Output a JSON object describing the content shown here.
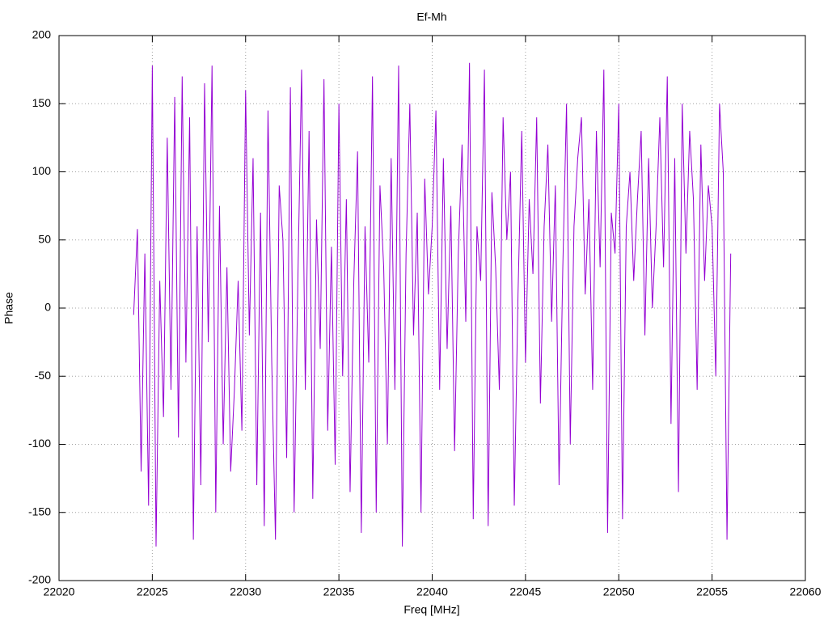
{
  "chart_data": {
    "type": "line",
    "title": "Ef-Mh",
    "x_label": "Freq [MHz]",
    "y_label": "Phase",
    "x": [
      22024,
      22024.2,
      22024.4,
      22024.6,
      22024.8,
      22025,
      22025.2,
      22025.4,
      22025.6,
      22025.8,
      22026,
      22026.2,
      22026.4,
      22026.6,
      22026.8,
      22027,
      22027.2,
      22027.4,
      22027.6,
      22027.8,
      22028,
      22028.2,
      22028.4,
      22028.6,
      22028.8,
      22029,
      22029.2,
      22029.4,
      22029.6,
      22029.8,
      22030,
      22030.2,
      22030.4,
      22030.6,
      22030.8,
      22031,
      22031.2,
      22031.4,
      22031.6,
      22031.8,
      22032,
      22032.2,
      22032.4,
      22032.6,
      22032.8,
      22033,
      22033.2,
      22033.4,
      22033.6,
      22033.8,
      22034,
      22034.2,
      22034.4,
      22034.6,
      22034.8,
      22035,
      22035.2,
      22035.4,
      22035.6,
      22035.8,
      22036,
      22036.2,
      22036.4,
      22036.6,
      22036.8,
      22037,
      22037.2,
      22037.4,
      22037.6,
      22037.8,
      22038,
      22038.2,
      22038.4,
      22038.6,
      22038.8,
      22039,
      22039.2,
      22039.4,
      22039.6,
      22039.8,
      22040,
      22040.2,
      22040.4,
      22040.6,
      22040.8,
      22041,
      22041.2,
      22041.4,
      22041.6,
      22041.8,
      22042,
      22042.2,
      22042.4,
      22042.6,
      22042.8,
      22043,
      22043.2,
      22043.4,
      22043.6,
      22043.8,
      22044,
      22044.2,
      22044.4,
      22044.6,
      22044.8,
      22045,
      22045.2,
      22045.4,
      22045.6,
      22045.8,
      22046,
      22046.2,
      22046.4,
      22046.6,
      22046.8,
      22047,
      22047.2,
      22047.4,
      22047.6,
      22047.8,
      22048,
      22048.2,
      22048.4,
      22048.6,
      22048.8,
      22049,
      22049.2,
      22049.4,
      22049.6,
      22049.8,
      22050,
      22050.2,
      22050.4,
      22050.6,
      22050.8,
      22051,
      22051.2,
      22051.4,
      22051.6,
      22051.8,
      22052,
      22052.2,
      22052.4,
      22052.6,
      22052.8,
      22053,
      22053.2,
      22053.4,
      22053.6,
      22053.8,
      22054,
      22054.2,
      22054.4,
      22054.6,
      22054.8,
      22055,
      22055.2,
      22055.4,
      22055.6,
      22055.8,
      22056
    ],
    "series": [
      {
        "color": "#9400d3",
        "values": [
          -5,
          58,
          -120,
          40,
          -145,
          178,
          -175,
          20,
          -80,
          125,
          -60,
          155,
          -95,
          170,
          -40,
          140,
          -170,
          60,
          -130,
          165,
          -25,
          178,
          -150,
          75,
          -100,
          30,
          -120,
          -60,
          20,
          -90,
          160,
          -20,
          110,
          -130,
          70,
          -160,
          145,
          -40,
          -170,
          90,
          50,
          -110,
          162,
          -150,
          20,
          175,
          -60,
          130,
          -140,
          65,
          -30,
          168,
          -90,
          45,
          -115,
          150,
          -50,
          80,
          -135,
          20,
          115,
          -165,
          60,
          -40,
          170,
          -150,
          90,
          30,
          -100,
          110,
          -60,
          178,
          -175,
          40,
          150,
          -20,
          70,
          -150,
          95,
          10,
          60,
          145,
          -60,
          110,
          -30,
          75,
          -105,
          40,
          120,
          -10,
          180,
          -155,
          60,
          20,
          175,
          -160,
          85,
          30,
          -60,
          140,
          50,
          100,
          -145,
          10,
          130,
          -40,
          80,
          25,
          140,
          -70,
          60,
          120,
          -10,
          90,
          -130,
          30,
          150,
          -100,
          60,
          110,
          140,
          10,
          80,
          -60,
          130,
          30,
          175,
          -165,
          70,
          40,
          150,
          -155,
          60,
          100,
          20,
          80,
          130,
          -20,
          110,
          0,
          60,
          140,
          30,
          170,
          -85,
          110,
          -135,
          150,
          40,
          130,
          80,
          -60,
          120,
          20,
          90,
          60,
          -50,
          150,
          100,
          -170,
          40
        ]
      }
    ],
    "xlim": [
      22020,
      22060
    ],
    "xticks": [
      22020,
      22025,
      22030,
      22035,
      22040,
      22045,
      22050,
      22055,
      22060
    ],
    "ylim": [
      -200,
      200
    ],
    "yticks": [
      -200,
      -150,
      -100,
      -50,
      0,
      50,
      100,
      150,
      200
    ],
    "grid": true
  }
}
